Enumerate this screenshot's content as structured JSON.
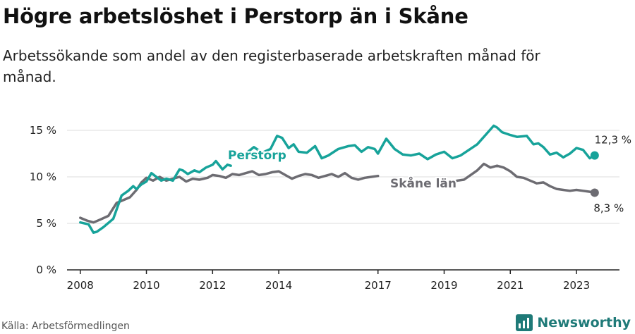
{
  "title": "Högre arbetslöshet i Perstorp än i Skåne",
  "subtitle": "Arbetssökande som andel av den registerbaserade arbetskraften månad för månad.",
  "source": "Källa: Arbetsförmedlingen",
  "brand": {
    "name": "Newsworthy",
    "icon": "newsworthy-logo-icon"
  },
  "colors": {
    "perstorp": "#17a39a",
    "skane": "#6d6c72",
    "grid": "#dddddd",
    "axis": "#222222"
  },
  "chart_data": {
    "type": "line",
    "title": "Högre arbetslöshet i Perstorp än i Skåne",
    "xlabel": "",
    "ylabel": "",
    "xlim": [
      2007.6,
      2024.3
    ],
    "ylim": [
      0,
      15
    ],
    "y_ticks": [
      0,
      5,
      10,
      15
    ],
    "y_tick_labels": [
      "0 %",
      "5 %",
      "10 %",
      "15 %"
    ],
    "x_ticks": [
      2008,
      2010,
      2012,
      2014,
      2017,
      2019,
      2021,
      2023
    ],
    "x_tick_labels": [
      "2008",
      "2010",
      "2012",
      "2014",
      "2017",
      "2019",
      "2021",
      "2023"
    ],
    "series": [
      {
        "name": "Perstorp",
        "label": "Perstorp",
        "end_label": "12,3 %",
        "x": [
          2008.0,
          2008.25,
          2008.4,
          2008.5,
          2008.7,
          2009.0,
          2009.25,
          2009.45,
          2009.6,
          2009.7,
          2009.85,
          2010.0,
          2010.15,
          2010.3,
          2010.45,
          2010.6,
          2010.8,
          2011.0,
          2011.1,
          2011.25,
          2011.45,
          2011.6,
          2011.8,
          2012.0,
          2012.1,
          2012.3,
          2012.45,
          2012.55,
          2012.75,
          2013.0,
          2013.25,
          2013.5,
          2013.75,
          2013.95,
          2014.1,
          2014.3,
          2014.45,
          2014.6,
          2014.85,
          2015.1,
          2015.3,
          2015.5,
          2015.8,
          2016.1,
          2016.3,
          2016.5,
          2016.7,
          2016.9,
          2017.0,
          2017.25,
          2017.5,
          2017.75,
          2018.0,
          2018.25,
          2018.5,
          2018.75,
          2019.0,
          2019.25,
          2019.5,
          2019.75,
          2020.0,
          2020.25,
          2020.5,
          2020.6,
          2020.75,
          2021.0,
          2021.2,
          2021.5,
          2021.7,
          2021.85,
          2022.0,
          2022.2,
          2022.4,
          2022.6,
          2022.8,
          2023.0,
          2023.2,
          2023.4,
          2023.55
        ],
        "y": [
          5.1,
          4.9,
          4.0,
          4.1,
          4.6,
          5.5,
          8.0,
          8.5,
          9.0,
          8.7,
          9.2,
          9.5,
          10.4,
          10.0,
          9.6,
          9.8,
          9.6,
          10.8,
          10.7,
          10.3,
          10.7,
          10.5,
          11.0,
          11.3,
          11.7,
          10.8,
          11.3,
          11.2,
          12.3,
          12.5,
          13.2,
          12.6,
          13.0,
          14.4,
          14.2,
          13.1,
          13.5,
          12.7,
          12.6,
          13.3,
          12.0,
          12.3,
          13.0,
          13.3,
          13.4,
          12.7,
          13.2,
          13.0,
          12.5,
          14.1,
          13.0,
          12.4,
          12.3,
          12.5,
          11.9,
          12.4,
          12.7,
          12.0,
          12.3,
          12.9,
          13.5,
          14.5,
          15.5,
          15.3,
          14.8,
          14.5,
          14.3,
          14.4,
          13.5,
          13.6,
          13.2,
          12.4,
          12.6,
          12.1,
          12.5,
          13.1,
          12.9,
          12.0,
          12.3
        ],
        "gaps": [
          [
            2012.55,
            2012.75
          ]
        ]
      },
      {
        "name": "Skåne län",
        "label": "Skåne län",
        "end_label": "8,3 %",
        "x": [
          2008.0,
          2008.2,
          2008.4,
          2008.6,
          2008.85,
          2009.1,
          2009.3,
          2009.5,
          2009.7,
          2009.85,
          2010.0,
          2010.2,
          2010.4,
          2010.6,
          2010.8,
          2011.0,
          2011.2,
          2011.4,
          2011.6,
          2011.85,
          2012.0,
          2012.2,
          2012.4,
          2012.6,
          2012.8,
          2013.0,
          2013.2,
          2013.4,
          2013.6,
          2013.8,
          2014.0,
          2014.2,
          2014.4,
          2014.6,
          2014.8,
          2015.0,
          2015.2,
          2015.4,
          2015.6,
          2015.8,
          2016.0,
          2016.2,
          2016.4,
          2016.6,
          2016.8,
          2017.0,
          2019.2,
          2019.4,
          2019.6,
          2019.8,
          2020.0,
          2020.2,
          2020.4,
          2020.6,
          2020.8,
          2021.0,
          2021.2,
          2021.4,
          2021.6,
          2021.8,
          2022.0,
          2022.2,
          2022.4,
          2022.6,
          2022.8,
          2023.0,
          2023.2,
          2023.4,
          2023.55
        ],
        "y": [
          5.6,
          5.3,
          5.1,
          5.4,
          5.8,
          7.2,
          7.5,
          7.8,
          8.6,
          9.4,
          9.9,
          9.6,
          10.0,
          9.6,
          9.8,
          10.0,
          9.5,
          9.8,
          9.7,
          9.9,
          10.2,
          10.1,
          9.9,
          10.3,
          10.2,
          10.4,
          10.6,
          10.2,
          10.3,
          10.5,
          10.6,
          10.2,
          9.8,
          10.1,
          10.3,
          10.2,
          9.9,
          10.1,
          10.3,
          10.0,
          10.4,
          9.9,
          9.7,
          9.9,
          10.0,
          10.1,
          9.3,
          9.6,
          9.7,
          10.2,
          10.7,
          11.4,
          11.0,
          11.2,
          11.0,
          10.6,
          10.0,
          9.9,
          9.6,
          9.3,
          9.4,
          9.0,
          8.7,
          8.6,
          8.5,
          8.6,
          8.5,
          8.4,
          8.3
        ],
        "gaps": [
          [
            2017.0,
            2019.2
          ]
        ]
      }
    ]
  }
}
